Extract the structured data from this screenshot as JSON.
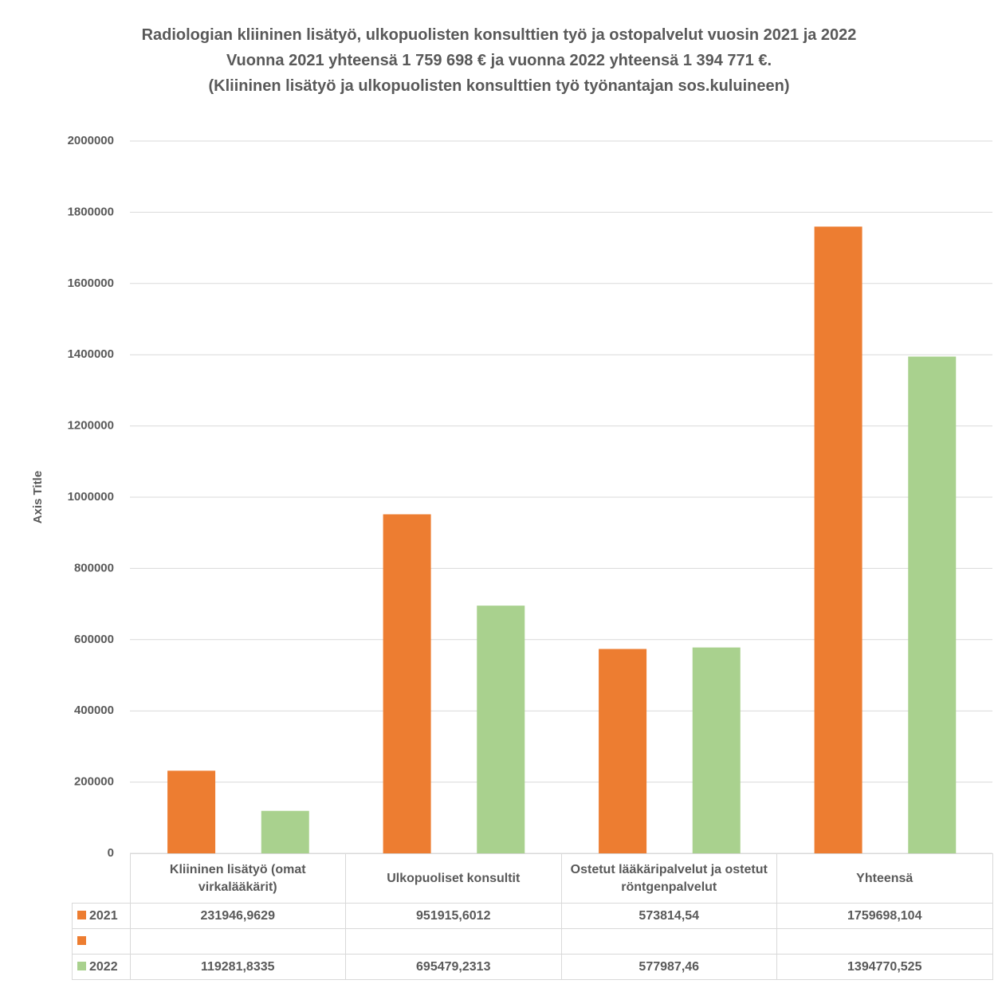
{
  "chart_data": {
    "type": "bar",
    "title": "Radiologian kliininen lisätyö, ulkopuolisten konsulttien työ ja ostopalvelut vuosin 2021 ja 2022",
    "subtitle": [
      "Vuonna 2021 yhteensä 1 759 698 € ja vuonna 2022 yhteensä 1 394 771 €.",
      "(Kliininen lisätyö ja ulkopuolisten konsulttien työ työnantajan sos.kuluineen)"
    ],
    "y_axis_title": "Axis Title",
    "categories": [
      "Kliininen lisätyö (omat virkalääkärit)",
      "Ulkopuoliset konsultit",
      "Ostetut lääkäripalvelut ja ostetut röntgenpalvelut",
      "Yhteensä"
    ],
    "series": [
      {
        "name": "2021",
        "color": "#ED7D31",
        "values": [
          231946.9629,
          951915.6012,
          573814.54,
          1759698.104
        ],
        "value_labels": [
          "231946,9629",
          "951915,6012",
          "573814,54",
          "1759698,104"
        ]
      },
      {
        "name": "2022",
        "color": "#A9D18E",
        "values": [
          119281.8335,
          695479.2313,
          577987.46,
          1394770.525
        ],
        "value_labels": [
          "119281,8335",
          "695479,2313",
          "577987,46",
          "1394770,525"
        ]
      }
    ],
    "ylim": [
      0,
      2000000
    ],
    "yticks": [
      0,
      200000,
      400000,
      600000,
      800000,
      1000000,
      1200000,
      1400000,
      1600000,
      1800000,
      2000000
    ],
    "grid": true
  }
}
